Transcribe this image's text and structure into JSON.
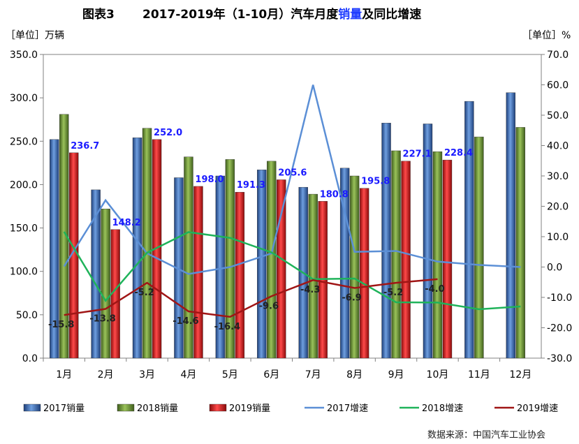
{
  "title": {
    "prefix": "图表3",
    "main_before": "2017-2019年（1-10月）汽车月度",
    "main_highlight": "销量",
    "main_after": "及同比增速"
  },
  "left_unit": "［单位］万辆",
  "right_unit": "［单位］%",
  "source": "数据来源：中国汽车工业协会",
  "colors": {
    "bar2017": "#3a6fb8",
    "bar2018": "#6f9a3a",
    "bar2019": "#d11d1d",
    "line2017": "#5b8fd6",
    "line2018": "#1fb35a",
    "line2019": "#a01515",
    "value_label": "#1a1aff"
  },
  "chart_data": {
    "type": "bar",
    "categories": [
      "1月",
      "2月",
      "3月",
      "4月",
      "5月",
      "6月",
      "7月",
      "8月",
      "9月",
      "10月",
      "11月",
      "12月"
    ],
    "left_axis": {
      "min": 0,
      "max": 350,
      "step": 50,
      "tick_labels": [
        "0.0",
        "50.0",
        "100.0",
        "150.0",
        "200.0",
        "250.0",
        "300.0",
        "350.0"
      ]
    },
    "right_axis": {
      "min": -30,
      "max": 70,
      "step": 10,
      "tick_labels": [
        "-30.0",
        "-20.0",
        "-10.0",
        "0.0",
        "10.0",
        "20.0",
        "30.0",
        "40.0",
        "50.0",
        "60.0",
        "70.0"
      ]
    },
    "bar_series": [
      {
        "name": "2017销量",
        "values": [
          252,
          194,
          254,
          208,
          210,
          217,
          197,
          219,
          271,
          270,
          296,
          306
        ]
      },
      {
        "name": "2018销量",
        "values": [
          281,
          172,
          265,
          232,
          229,
          227,
          189,
          210,
          239,
          238,
          255,
          266
        ]
      },
      {
        "name": "2019销量",
        "values": [
          236.7,
          148.2,
          252.0,
          198.0,
          191.3,
          205.6,
          180.8,
          195.8,
          227.1,
          228.4,
          null,
          null
        ],
        "labels": [
          "236.7",
          "148.2",
          "252.0",
          "198.0",
          "191.3",
          "205.6",
          "180.8",
          "195.8",
          "227.1",
          "228.4",
          "",
          ""
        ]
      }
    ],
    "line_series": [
      {
        "name": "2017增速",
        "values": [
          0.2,
          22,
          4.5,
          -2.3,
          0,
          4.5,
          60,
          5,
          5.3,
          1.8,
          0.7,
          0
        ]
      },
      {
        "name": "2018增速",
        "values": [
          11.6,
          -11.1,
          4.7,
          11.5,
          9.6,
          4.8,
          -4,
          -3.8,
          -11.6,
          -11.7,
          -13.9,
          -13
        ]
      },
      {
        "name": "2019增速",
        "values": [
          -15.8,
          -13.8,
          -5.2,
          -14.6,
          -16.4,
          -9.6,
          -4.3,
          -6.9,
          -5.2,
          -4.0,
          null,
          null
        ],
        "labels": [
          "-15.8",
          "-13.8",
          "-5.2",
          "-14.6",
          "-16.4",
          "-9.6",
          "-4.3",
          "-6.9",
          "-5.2",
          "-4.0",
          "",
          ""
        ]
      }
    ],
    "legend": [
      "2017销量",
      "2018销量",
      "2019销量",
      "2017增速",
      "2018增速",
      "2019增速"
    ],
    "legend_position": "bottom",
    "grid": false
  }
}
